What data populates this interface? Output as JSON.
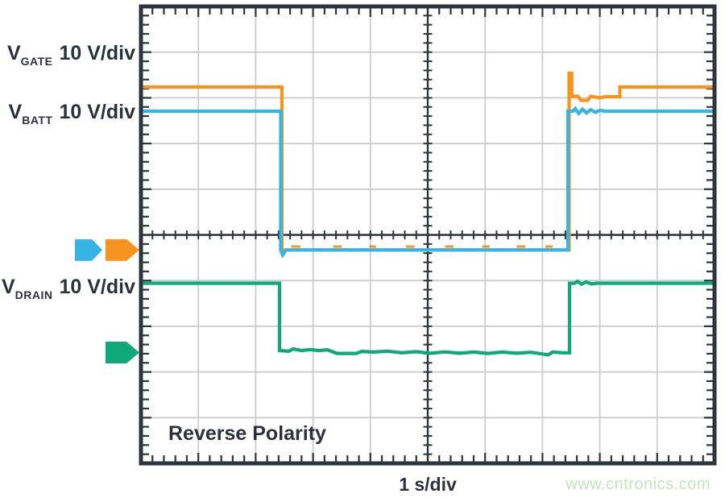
{
  "chart_data": {
    "type": "line",
    "subtype": "oscilloscope",
    "title": "",
    "annotation": "Reverse Polarity",
    "xlabel": "1 s/div",
    "x_scale_per_div": "1 s",
    "y_scale_per_div": "10 V",
    "axis_ranges": {
      "x_divs": [
        0,
        10
      ],
      "y_divs": [
        0,
        10
      ]
    },
    "grid": {
      "hdivs": 10,
      "vdivs": 10,
      "minor_per_div": 5,
      "grid_color": "#caccce",
      "axis_color": "#2e343e",
      "grid_on": true
    },
    "units_note": "points are [x,y] in graticule divisions, x from left edge, y from top edge; vertical 10 V/div, horizontal 1 s/div",
    "channels": [
      {
        "id": "vgate",
        "label_main": "V",
        "label_sub": "GATE",
        "scale": "10 V/div",
        "color": "#f7941e",
        "paths": [
          [
            [
              0,
              1.764
            ],
            [
              2.458,
              1.764
            ],
            [
              2.458,
              5.33
            ],
            [
              7.465,
              5.33
            ],
            [
              7.465,
              1.464
            ],
            [
              7.51,
              1.464
            ],
            [
              7.51,
              1.966
            ],
            [
              7.62,
              1.966
            ],
            [
              7.67,
              2.055
            ],
            [
              7.79,
              2.055
            ],
            [
              7.84,
              1.966
            ],
            [
              8.0,
              2.0
            ],
            [
              8.1,
              1.975
            ],
            [
              8.35,
              1.975
            ],
            [
              8.35,
              1.764
            ],
            [
              10,
              1.764
            ]
          ],
          [
            [
              2.62,
              5.255
            ],
            [
              2.78,
              5.255
            ]
          ],
          [
            [
              3.35,
              5.255
            ],
            [
              3.5,
              5.255
            ]
          ],
          [
            [
              3.98,
              5.255
            ],
            [
              4.1,
              5.255
            ]
          ],
          [
            [
              4.62,
              5.255
            ],
            [
              4.77,
              5.255
            ]
          ],
          [
            [
              5.3,
              5.255
            ],
            [
              5.45,
              5.255
            ]
          ],
          [
            [
              5.95,
              5.255
            ],
            [
              6.08,
              5.255
            ]
          ],
          [
            [
              6.55,
              5.255
            ],
            [
              6.7,
              5.255
            ]
          ],
          [
            [
              7.05,
              5.255
            ],
            [
              7.18,
              5.255
            ]
          ]
        ]
      },
      {
        "id": "vbatt",
        "label_main": "V",
        "label_sub": "BATT",
        "scale": "10 V/div",
        "color": "#35b4e5",
        "paths": [
          [
            [
              0,
              2.293
            ],
            [
              2.437,
              2.293
            ],
            [
              2.437,
              5.33
            ],
            [
              2.47,
              5.44
            ],
            [
              2.53,
              5.33
            ],
            [
              7.444,
              5.33
            ],
            [
              7.444,
              2.293
            ],
            [
              7.53,
              2.293
            ],
            [
              7.57,
              2.235
            ],
            [
              7.63,
              2.34
            ],
            [
              7.7,
              2.25
            ],
            [
              7.77,
              2.33
            ],
            [
              7.84,
              2.26
            ],
            [
              7.92,
              2.315
            ],
            [
              8.0,
              2.275
            ],
            [
              8.1,
              2.293
            ],
            [
              10,
              2.293
            ]
          ]
        ]
      },
      {
        "id": "vdrain",
        "label_main": "V",
        "label_sub": "DRAIN",
        "scale": "10 V/div",
        "color": "#0ea879",
        "paths": [
          [
            [
              0,
              6.058
            ],
            [
              2.416,
              6.058
            ],
            [
              2.416,
              7.53
            ],
            [
              2.58,
              7.545
            ],
            [
              2.65,
              7.495
            ],
            [
              2.8,
              7.53
            ],
            [
              2.95,
              7.51
            ],
            [
              3.1,
              7.53
            ],
            [
              3.25,
              7.515
            ],
            [
              3.42,
              7.595
            ],
            [
              3.75,
              7.595
            ],
            [
              3.85,
              7.55
            ],
            [
              4.05,
              7.565
            ],
            [
              4.3,
              7.545
            ],
            [
              4.55,
              7.58
            ],
            [
              4.8,
              7.555
            ],
            [
              5.05,
              7.59
            ],
            [
              5.3,
              7.56
            ],
            [
              5.55,
              7.59
            ],
            [
              5.8,
              7.565
            ],
            [
              6.05,
              7.595
            ],
            [
              6.3,
              7.565
            ],
            [
              6.55,
              7.59
            ],
            [
              6.8,
              7.57
            ],
            [
              7.1,
              7.625
            ],
            [
              7.18,
              7.565
            ],
            [
              7.35,
              7.58
            ],
            [
              7.472,
              7.58
            ],
            [
              7.472,
              6.058
            ],
            [
              7.56,
              6.058
            ],
            [
              7.61,
              6.015
            ],
            [
              7.68,
              6.08
            ],
            [
              7.76,
              6.03
            ],
            [
              7.85,
              6.07
            ],
            [
              7.95,
              6.058
            ],
            [
              10,
              6.058
            ]
          ]
        ]
      }
    ],
    "ground_markers": [
      {
        "channel": "vbatt",
        "color": "#35b4e5",
        "y_div": 5.33,
        "col": 0
      },
      {
        "channel": "vgate",
        "color": "#f7941e",
        "y_div": 5.33,
        "col": 1
      },
      {
        "channel": "vdrain",
        "color": "#0ea879",
        "y_div": 7.575,
        "col": 1
      }
    ]
  },
  "watermark": {
    "text": "www.cntronics.com",
    "color": "#c3e5bb"
  }
}
